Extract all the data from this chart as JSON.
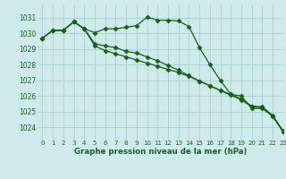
{
  "title": "Graphe pression niveau de la mer (hPa)",
  "background_color": "#ceeaea",
  "grid_color_major": "#aacfcf",
  "grid_color_minor": "#c0dfdf",
  "line_color": "#1a5e1a",
  "xlim": [
    -0.5,
    23
  ],
  "ylim": [
    1023.2,
    1031.8
  ],
  "yticks": [
    1024,
    1025,
    1026,
    1027,
    1028,
    1029,
    1030,
    1031
  ],
  "xticks": [
    0,
    1,
    2,
    3,
    4,
    5,
    6,
    7,
    8,
    9,
    10,
    11,
    12,
    13,
    14,
    15,
    16,
    17,
    18,
    19,
    20,
    21,
    22,
    23
  ],
  "series1": [
    1029.7,
    1030.2,
    1030.2,
    1030.75,
    1030.3,
    1030.05,
    1030.3,
    1030.3,
    1030.4,
    1030.5,
    1031.05,
    1030.85,
    1030.85,
    1030.8,
    1030.45,
    1029.1,
    1028.0,
    1027.0,
    1026.1,
    1026.0,
    1025.2,
    1025.2,
    1024.7,
    1023.7
  ],
  "series2": [
    1029.7,
    1030.2,
    1030.2,
    1030.75,
    1030.3,
    1029.35,
    1029.2,
    1029.1,
    1028.85,
    1028.75,
    1028.5,
    1028.25,
    1027.95,
    1027.65,
    1027.3,
    1026.95,
    1026.65,
    1026.35,
    1026.1,
    1025.8,
    1025.35,
    1025.3,
    1024.75,
    1023.75
  ],
  "series3": [
    1029.7,
    1030.2,
    1030.2,
    1030.75,
    1030.3,
    1029.2,
    1028.9,
    1028.7,
    1028.5,
    1028.3,
    1028.1,
    1027.9,
    1027.7,
    1027.5,
    1027.25,
    1026.95,
    1026.65,
    1026.35,
    1026.05,
    1025.75,
    1025.3,
    1025.25,
    1024.7,
    1023.7
  ]
}
